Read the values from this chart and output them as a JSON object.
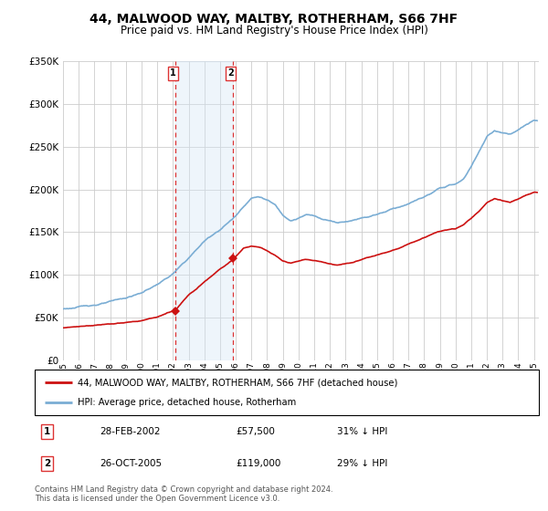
{
  "title": "44, MALWOOD WAY, MALTBY, ROTHERHAM, S66 7HF",
  "subtitle": "Price paid vs. HM Land Registry's House Price Index (HPI)",
  "legend_line1": "44, MALWOOD WAY, MALTBY, ROTHERHAM, S66 7HF (detached house)",
  "legend_line2": "HPI: Average price, detached house, Rotherham",
  "footer": "Contains HM Land Registry data © Crown copyright and database right 2024.\nThis data is licensed under the Open Government Licence v3.0.",
  "transactions": [
    {
      "label": "1",
      "date": "28-FEB-2002",
      "price": "£57,500",
      "hpi": "31% ↓ HPI",
      "year": 2002.16,
      "value": 57500
    },
    {
      "label": "2",
      "date": "26-OCT-2005",
      "price": "£119,000",
      "hpi": "29% ↓ HPI",
      "year": 2005.83,
      "value": 119000
    }
  ],
  "hpi_color": "#7aadd4",
  "price_color": "#cc1111",
  "marker_color": "#cc1111",
  "shade_color": "#d6e8f7",
  "vline_color": "#dd3333",
  "background_color": "#ffffff",
  "grid_color": "#cccccc",
  "ylim": [
    0,
    350000
  ],
  "xlim": [
    1995,
    2025.3
  ],
  "yticks": [
    0,
    50000,
    100000,
    150000,
    200000,
    250000,
    300000,
    350000
  ]
}
